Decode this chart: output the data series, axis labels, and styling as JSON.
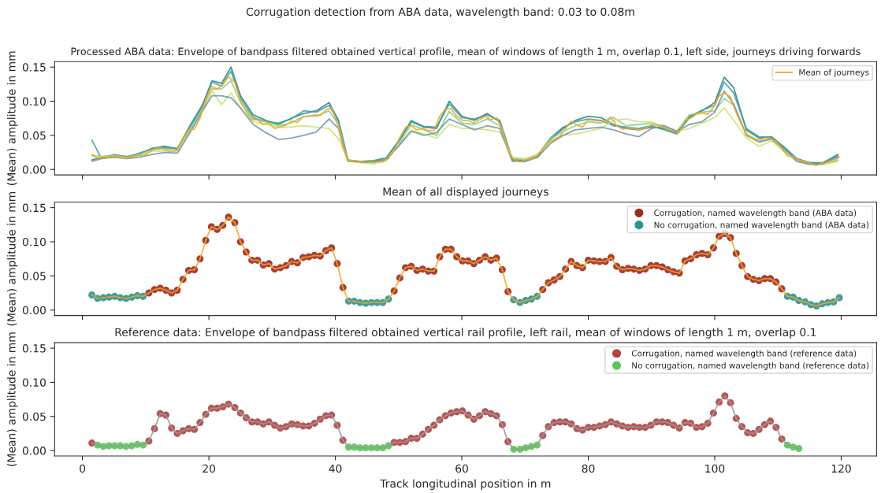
{
  "chart_data": [
    {
      "type": "line",
      "title": "Corrugation detection from ABA data, wavelength band: 0.03 to 0.08m",
      "subtitle": "Processed ABA data: Envelope of bandpass filtered obtained vertical profile, mean of windows of length 1 m, overlap 0.1, left side, journeys driving forwards",
      "ylabel": "(Mean) amplitude in mm",
      "xlim": [
        -4.4,
        125.6
      ],
      "xticks": [
        0,
        20,
        40,
        60,
        80,
        100,
        120
      ],
      "ylim": [
        -0.008,
        0.158
      ],
      "yticks": [
        {
          "value": 0,
          "label": "0.00"
        },
        {
          "value": 0.05,
          "label": "0.05"
        },
        {
          "value": 0.1,
          "label": "0.10"
        },
        {
          "value": 0.15,
          "label": "0.15"
        }
      ],
      "tick_labels": "y",
      "legend": "top right",
      "marker": "none",
      "line_style": "solid",
      "x": [
        1.5,
        3,
        5,
        7,
        9,
        11,
        13,
        15,
        17,
        19,
        20.5,
        22,
        23.5,
        25,
        27,
        29,
        31,
        33,
        35,
        37,
        39,
        40.5,
        42,
        44,
        46,
        48,
        50,
        52,
        54,
        56,
        58,
        60,
        62,
        64,
        66,
        68,
        70,
        72,
        74,
        76,
        78,
        80,
        82,
        84,
        86,
        88,
        90,
        92,
        94,
        96,
        98,
        100,
        101.5,
        103,
        105,
        107,
        109,
        111,
        113,
        115,
        117,
        119.5
      ],
      "series": [
        {
          "color": "#2c7f8c",
          "values": [
            0.014,
            0.018,
            0.021,
            0.019,
            0.022,
            0.031,
            0.034,
            0.03,
            0.064,
            0.095,
            0.13,
            0.126,
            0.15,
            0.108,
            0.08,
            0.072,
            0.066,
            0.075,
            0.082,
            0.086,
            0.098,
            0.072,
            0.014,
            0.011,
            0.012,
            0.016,
            0.042,
            0.07,
            0.062,
            0.06,
            0.1,
            0.078,
            0.072,
            0.082,
            0.07,
            0.014,
            0.012,
            0.019,
            0.044,
            0.06,
            0.072,
            0.078,
            0.076,
            0.066,
            0.06,
            0.058,
            0.062,
            0.06,
            0.054,
            0.078,
            0.086,
            0.098,
            0.135,
            0.12,
            0.058,
            0.046,
            0.048,
            0.032,
            0.016,
            0.01,
            0.009,
            0.022
          ]
        },
        {
          "color": "#3a9f9f",
          "values": [
            0.043,
            0.016,
            0.022,
            0.018,
            0.024,
            0.03,
            0.032,
            0.031,
            0.062,
            0.092,
            0.128,
            0.122,
            0.144,
            0.104,
            0.076,
            0.07,
            0.068,
            0.074,
            0.086,
            0.084,
            0.094,
            0.07,
            0.013,
            0.012,
            0.013,
            0.017,
            0.04,
            0.072,
            0.063,
            0.062,
            0.096,
            0.076,
            0.074,
            0.08,
            0.072,
            0.015,
            0.013,
            0.02,
            0.046,
            0.062,
            0.07,
            0.074,
            0.072,
            0.064,
            0.062,
            0.06,
            0.064,
            0.058,
            0.052,
            0.076,
            0.087,
            0.094,
            0.128,
            0.112,
            0.06,
            0.048,
            0.047,
            0.033,
            0.015,
            0.01,
            0.01,
            0.02
          ]
        },
        {
          "color": "#88cf8a",
          "values": [
            0.02,
            0.019,
            0.021,
            0.018,
            0.022,
            0.029,
            0.03,
            0.028,
            0.058,
            0.088,
            0.118,
            0.118,
            0.13,
            0.098,
            0.074,
            0.07,
            0.064,
            0.068,
            0.078,
            0.078,
            0.086,
            0.066,
            0.014,
            0.012,
            0.01,
            0.015,
            0.036,
            0.066,
            0.058,
            0.05,
            0.085,
            0.068,
            0.066,
            0.074,
            0.064,
            0.016,
            0.015,
            0.022,
            0.044,
            0.056,
            0.064,
            0.07,
            0.068,
            0.076,
            0.064,
            0.066,
            0.068,
            0.064,
            0.056,
            0.08,
            0.084,
            0.086,
            0.104,
            0.094,
            0.052,
            0.042,
            0.044,
            0.028,
            0.012,
            0.007,
            0.007,
            0.014
          ]
        },
        {
          "color": "#cce36a",
          "values": [
            0.022,
            0.018,
            0.019,
            0.017,
            0.02,
            0.027,
            0.027,
            0.027,
            0.055,
            0.085,
            0.115,
            0.095,
            0.112,
            0.09,
            0.07,
            0.066,
            0.062,
            0.062,
            0.064,
            0.062,
            0.06,
            0.045,
            0.013,
            0.01,
            0.008,
            0.014,
            0.034,
            0.058,
            0.052,
            0.046,
            0.066,
            0.06,
            0.06,
            0.058,
            0.055,
            0.018,
            0.016,
            0.022,
            0.04,
            0.05,
            0.052,
            0.056,
            0.06,
            0.072,
            0.074,
            0.07,
            0.07,
            0.062,
            0.056,
            0.06,
            0.068,
            0.076,
            0.09,
            0.072,
            0.046,
            0.034,
            0.042,
            0.026,
            0.012,
            0.008,
            0.007,
            0.012
          ]
        },
        {
          "color": "#7090b0",
          "values": [
            0.012,
            0.016,
            0.018,
            0.016,
            0.018,
            0.022,
            0.025,
            0.024,
            0.054,
            0.086,
            0.108,
            0.108,
            0.105,
            0.09,
            0.066,
            0.054,
            0.044,
            0.046,
            0.05,
            0.055,
            0.074,
            0.06,
            0.012,
            0.011,
            0.011,
            0.014,
            0.034,
            0.056,
            0.05,
            0.054,
            0.074,
            0.066,
            0.058,
            0.064,
            0.06,
            0.012,
            0.012,
            0.018,
            0.038,
            0.05,
            0.058,
            0.06,
            0.062,
            0.058,
            0.052,
            0.048,
            0.06,
            0.064,
            0.056,
            0.066,
            0.07,
            0.084,
            0.115,
            0.096,
            0.05,
            0.04,
            0.045,
            0.03,
            0.012,
            0.008,
            0.008,
            0.018
          ]
        },
        {
          "name": "Mean of journeys",
          "color": "#f5a623",
          "x": [
            1.5,
            2.4,
            3.3,
            4.2,
            5.1,
            6.0,
            6.9,
            7.8,
            8.7,
            9.6,
            10.5,
            11.4,
            12.3,
            13.2,
            14.1,
            15.0,
            15.9,
            16.8,
            17.7,
            18.6,
            19.5,
            20.4,
            21.3,
            22.2,
            23.1,
            24.1,
            25.0,
            25.9,
            26.8,
            27.7,
            28.6,
            29.5,
            30.4,
            31.3,
            32.2,
            33.1,
            34.0,
            34.9,
            35.8,
            36.7,
            37.6,
            38.5,
            39.4,
            40.3,
            41.2,
            42.1,
            43.0,
            43.9,
            44.8,
            45.7,
            46.6,
            47.5,
            48.4,
            49.3,
            50.2,
            51.1,
            52.0,
            52.9,
            53.8,
            54.7,
            55.6,
            56.5,
            57.4,
            58.3,
            59.2,
            60.1,
            61.0,
            61.9,
            62.8,
            63.7,
            64.6,
            65.5,
            66.4,
            67.3,
            68.2,
            69.2,
            70.1,
            71.0,
            71.9,
            72.8,
            73.7,
            74.6,
            75.5,
            76.4,
            77.3,
            78.2,
            79.1,
            80.0,
            80.9,
            81.8,
            82.7,
            83.6,
            84.5,
            85.4,
            86.3,
            87.2,
            88.1,
            89.0,
            89.9,
            90.8,
            91.7,
            92.6,
            93.5,
            94.4,
            95.3,
            96.2,
            97.1,
            98.0,
            98.9,
            99.8,
            100.7,
            101.6,
            102.5,
            103.4,
            104.3,
            105.2,
            106.1,
            107.0,
            107.9,
            108.8,
            109.7,
            110.6,
            111.5,
            112.4,
            113.3,
            114.3,
            115.2,
            116.1,
            117.0,
            117.9,
            118.8,
            119.7
          ],
          "values": [
            0.022,
            0.017,
            0.018,
            0.019,
            0.02,
            0.018,
            0.017,
            0.019,
            0.021,
            0.02,
            0.025,
            0.03,
            0.032,
            0.029,
            0.025,
            0.029,
            0.045,
            0.058,
            0.059,
            0.075,
            0.102,
            0.122,
            0.118,
            0.124,
            0.136,
            0.128,
            0.1,
            0.085,
            0.073,
            0.073,
            0.066,
            0.068,
            0.06,
            0.062,
            0.065,
            0.071,
            0.069,
            0.077,
            0.078,
            0.08,
            0.079,
            0.087,
            0.091,
            0.068,
            0.033,
            0.013,
            0.013,
            0.011,
            0.01,
            0.011,
            0.011,
            0.011,
            0.016,
            0.028,
            0.047,
            0.062,
            0.064,
            0.058,
            0.06,
            0.057,
            0.057,
            0.078,
            0.089,
            0.089,
            0.078,
            0.072,
            0.072,
            0.068,
            0.073,
            0.078,
            0.073,
            0.076,
            0.059,
            0.027,
            0.015,
            0.011,
            0.014,
            0.016,
            0.02,
            0.03,
            0.04,
            0.044,
            0.049,
            0.06,
            0.071,
            0.065,
            0.062,
            0.073,
            0.072,
            0.071,
            0.071,
            0.077,
            0.064,
            0.059,
            0.061,
            0.06,
            0.058,
            0.06,
            0.065,
            0.065,
            0.063,
            0.059,
            0.056,
            0.054,
            0.072,
            0.075,
            0.081,
            0.083,
            0.081,
            0.091,
            0.108,
            0.112,
            0.106,
            0.083,
            0.065,
            0.049,
            0.045,
            0.043,
            0.046,
            0.046,
            0.041,
            0.031,
            0.02,
            0.019,
            0.014,
            0.012,
            0.008,
            0.006,
            0.009,
            0.011,
            0.012,
            0.018
          ]
        }
      ]
    },
    {
      "type": "scatter",
      "title": "Mean of all displayed journeys",
      "ylabel": "(Mean) amplitude in mm",
      "xlim": [
        -4.4,
        125.6
      ],
      "xticks": [
        0,
        20,
        40,
        60,
        80,
        100,
        120
      ],
      "ylim": [
        -0.008,
        0.158
      ],
      "yticks": [
        {
          "value": 0,
          "label": "0.00"
        },
        {
          "value": 0.05,
          "label": "0.05"
        },
        {
          "value": 0.1,
          "label": "0.10"
        },
        {
          "value": 0.15,
          "label": "0.15"
        }
      ],
      "tick_labels": "y",
      "legend": "top right",
      "x": [
        1.5,
        2.4,
        3.3,
        4.2,
        5.1,
        6.0,
        6.9,
        7.8,
        8.7,
        9.6,
        10.5,
        11.4,
        12.3,
        13.2,
        14.1,
        15.0,
        15.9,
        16.8,
        17.7,
        18.6,
        19.5,
        20.4,
        21.3,
        22.2,
        23.1,
        24.1,
        25.0,
        25.9,
        26.8,
        27.7,
        28.6,
        29.5,
        30.4,
        31.3,
        32.2,
        33.1,
        34.0,
        34.9,
        35.8,
        36.7,
        37.6,
        38.5,
        39.4,
        40.3,
        41.2,
        42.1,
        43.0,
        43.9,
        44.8,
        45.7,
        46.6,
        47.5,
        48.4,
        49.3,
        50.2,
        51.1,
        52.0,
        52.9,
        53.8,
        54.7,
        55.6,
        56.5,
        57.4,
        58.3,
        59.2,
        60.1,
        61.0,
        61.9,
        62.8,
        63.7,
        64.6,
        65.5,
        66.4,
        67.3,
        68.2,
        69.2,
        70.1,
        71.0,
        71.9,
        72.8,
        73.7,
        74.6,
        75.5,
        76.4,
        77.3,
        78.2,
        79.1,
        80.0,
        80.9,
        81.8,
        82.7,
        83.6,
        84.5,
        85.4,
        86.3,
        87.2,
        88.1,
        89.0,
        89.9,
        90.8,
        91.7,
        92.6,
        93.5,
        94.4,
        95.3,
        96.2,
        97.1,
        98.0,
        98.9,
        99.8,
        100.7,
        101.6,
        102.5,
        103.4,
        104.3,
        105.2,
        106.1,
        107.0,
        107.9,
        108.8,
        109.7,
        110.6,
        111.5,
        112.4,
        113.3,
        114.3,
        115.2,
        116.1,
        117.0,
        117.9,
        118.8,
        119.7
      ],
      "series": [
        {
          "type": "line",
          "marker": "none",
          "color": "#f5a623",
          "values": [
            0.022,
            0.017,
            0.018,
            0.019,
            0.02,
            0.018,
            0.017,
            0.019,
            0.021,
            0.02,
            0.025,
            0.03,
            0.032,
            0.029,
            0.025,
            0.029,
            0.045,
            0.058,
            0.059,
            0.075,
            0.102,
            0.122,
            0.118,
            0.124,
            0.136,
            0.128,
            0.1,
            0.085,
            0.073,
            0.073,
            0.066,
            0.068,
            0.06,
            0.062,
            0.065,
            0.071,
            0.069,
            0.077,
            0.078,
            0.08,
            0.079,
            0.087,
            0.091,
            0.068,
            0.033,
            0.013,
            0.013,
            0.011,
            0.01,
            0.011,
            0.011,
            0.011,
            0.016,
            0.028,
            0.047,
            0.062,
            0.064,
            0.058,
            0.06,
            0.057,
            0.057,
            0.078,
            0.089,
            0.089,
            0.078,
            0.072,
            0.072,
            0.068,
            0.073,
            0.078,
            0.073,
            0.076,
            0.059,
            0.027,
            0.015,
            0.011,
            0.014,
            0.016,
            0.02,
            0.03,
            0.04,
            0.044,
            0.049,
            0.06,
            0.071,
            0.065,
            0.062,
            0.073,
            0.072,
            0.071,
            0.071,
            0.077,
            0.064,
            0.059,
            0.061,
            0.06,
            0.058,
            0.06,
            0.065,
            0.065,
            0.063,
            0.059,
            0.056,
            0.054,
            0.072,
            0.075,
            0.081,
            0.083,
            0.081,
            0.091,
            0.108,
            0.112,
            0.106,
            0.083,
            0.065,
            0.049,
            0.045,
            0.043,
            0.046,
            0.046,
            0.041,
            0.031,
            0.02,
            0.019,
            0.014,
            0.012,
            0.008,
            0.006,
            0.009,
            0.011,
            0.012,
            0.018
          ]
        },
        {
          "name": "Corrugation, named wavelength band (ABA data)",
          "marker": "circle",
          "color": "#9e2a20",
          "values": [
            null,
            null,
            null,
            null,
            null,
            null,
            null,
            null,
            null,
            null,
            0.025,
            0.03,
            0.032,
            0.029,
            0.025,
            0.029,
            0.045,
            0.058,
            0.059,
            0.075,
            0.102,
            0.122,
            0.118,
            0.124,
            0.136,
            0.128,
            0.1,
            0.085,
            0.073,
            0.073,
            0.066,
            0.068,
            0.06,
            0.062,
            0.065,
            0.071,
            0.069,
            0.077,
            0.078,
            0.08,
            0.079,
            0.087,
            0.091,
            0.068,
            0.033,
            null,
            null,
            null,
            null,
            null,
            null,
            null,
            null,
            0.028,
            0.047,
            0.062,
            0.064,
            0.058,
            0.06,
            0.057,
            0.057,
            0.078,
            0.089,
            0.089,
            0.078,
            0.072,
            0.072,
            0.068,
            0.073,
            0.078,
            0.073,
            0.076,
            0.059,
            0.027,
            null,
            null,
            null,
            null,
            null,
            0.03,
            0.04,
            0.044,
            0.049,
            0.06,
            0.071,
            0.065,
            0.062,
            0.073,
            0.072,
            0.071,
            0.071,
            0.077,
            0.064,
            0.059,
            0.061,
            0.06,
            0.058,
            0.06,
            0.065,
            0.065,
            0.063,
            0.059,
            0.056,
            0.054,
            0.072,
            0.075,
            0.081,
            0.083,
            0.081,
            0.091,
            0.108,
            0.112,
            0.106,
            0.083,
            0.065,
            0.049,
            0.045,
            0.043,
            0.046,
            0.046,
            0.041,
            0.031,
            null,
            null,
            null,
            null,
            null,
            null,
            null,
            null,
            null,
            null
          ]
        },
        {
          "name": "No corrugation, named wavelength band (ABA data)",
          "marker": "circle",
          "color": "#2a9494",
          "values": [
            0.022,
            0.017,
            0.018,
            0.019,
            0.02,
            0.018,
            0.017,
            0.019,
            0.021,
            0.02,
            null,
            null,
            null,
            null,
            null,
            null,
            null,
            null,
            null,
            null,
            null,
            null,
            null,
            null,
            null,
            null,
            null,
            null,
            null,
            null,
            null,
            null,
            null,
            null,
            null,
            null,
            null,
            null,
            null,
            null,
            null,
            null,
            null,
            null,
            null,
            0.013,
            0.013,
            0.011,
            0.01,
            0.011,
            0.011,
            0.011,
            0.016,
            null,
            null,
            null,
            null,
            null,
            null,
            null,
            null,
            null,
            null,
            null,
            null,
            null,
            null,
            null,
            null,
            null,
            null,
            null,
            null,
            null,
            0.015,
            0.011,
            0.014,
            0.016,
            0.02,
            null,
            null,
            null,
            null,
            null,
            null,
            null,
            null,
            null,
            null,
            null,
            null,
            null,
            null,
            null,
            null,
            null,
            null,
            null,
            null,
            null,
            null,
            null,
            null,
            null,
            null,
            null,
            null,
            null,
            null,
            null,
            null,
            null,
            null,
            null,
            null,
            null,
            null,
            null,
            null,
            null,
            null,
            null,
            0.02,
            0.019,
            0.014,
            0.012,
            0.008,
            0.006,
            0.009,
            0.011,
            0.012,
            0.018
          ]
        }
      ]
    },
    {
      "type": "scatter",
      "title": "Reference data: Envelope of bandpass filtered obtained vertical rail profile, left rail, mean of windows of length 1 m, overlap 0.1",
      "xlabel": "Track longitudinal position in m",
      "ylabel": "(Mean) amplitude in mm",
      "xlim": [
        -4.4,
        125.6
      ],
      "xticks": [
        0,
        20,
        40,
        60,
        80,
        100,
        120
      ],
      "ylim": [
        -0.008,
        0.158
      ],
      "yticks": [
        {
          "value": 0,
          "label": "0.00"
        },
        {
          "value": 0.05,
          "label": "0.05"
        },
        {
          "value": 0.1,
          "label": "0.10"
        },
        {
          "value": 0.15,
          "label": "0.15"
        }
      ],
      "legend": "top right",
      "x": [
        1.5,
        2.4,
        3.3,
        4.2,
        5.1,
        6.0,
        6.9,
        7.8,
        8.7,
        9.6,
        10.5,
        11.4,
        12.3,
        13.2,
        14.1,
        15.0,
        15.9,
        16.8,
        17.7,
        18.6,
        19.5,
        20.4,
        21.3,
        22.2,
        23.1,
        24.1,
        25.0,
        25.9,
        26.8,
        27.7,
        28.6,
        29.5,
        30.4,
        31.3,
        32.2,
        33.1,
        34.0,
        34.9,
        35.8,
        36.7,
        37.6,
        38.5,
        39.4,
        40.3,
        41.2,
        42.1,
        43.0,
        43.9,
        44.8,
        45.7,
        46.6,
        47.5,
        48.4,
        49.3,
        50.2,
        51.1,
        52.0,
        52.9,
        53.8,
        54.7,
        55.6,
        56.5,
        57.4,
        58.3,
        59.2,
        60.1,
        61.0,
        61.9,
        62.8,
        63.7,
        64.6,
        65.5,
        66.4,
        67.3,
        68.2,
        69.2,
        70.1,
        71.0,
        71.9,
        72.8,
        73.7,
        74.6,
        75.5,
        76.4,
        77.3,
        78.2,
        79.1,
        80.0,
        80.9,
        81.8,
        82.7,
        83.6,
        84.5,
        85.4,
        86.3,
        87.2,
        88.1,
        89.0,
        89.9,
        90.8,
        91.7,
        92.6,
        93.5,
        94.4,
        95.3,
        96.2,
        97.1,
        98.0,
        98.9,
        99.8,
        100.7,
        101.6,
        102.5,
        103.4,
        104.3,
        105.2,
        106.1,
        107.0,
        107.9,
        108.8,
        109.7,
        110.6,
        111.5,
        112.4,
        113.3
      ],
      "series": [
        {
          "type": "line",
          "marker": "none",
          "color": "#999999",
          "values": [
            0.011,
            0.008,
            0.006,
            0.007,
            0.007,
            0.007,
            0.006,
            0.007,
            0.009,
            0.008,
            0.014,
            0.032,
            0.054,
            0.052,
            0.033,
            0.025,
            0.029,
            0.032,
            0.031,
            0.041,
            0.053,
            0.062,
            0.062,
            0.064,
            0.068,
            0.063,
            0.055,
            0.048,
            0.042,
            0.042,
            0.039,
            0.042,
            0.037,
            0.033,
            0.035,
            0.039,
            0.038,
            0.036,
            0.036,
            0.04,
            0.046,
            0.051,
            0.052,
            0.037,
            0.015,
            0.005,
            0.005,
            0.004,
            0.004,
            0.004,
            0.004,
            0.004,
            0.007,
            0.012,
            0.012,
            0.013,
            0.018,
            0.018,
            0.024,
            0.031,
            0.037,
            0.045,
            0.051,
            0.055,
            0.057,
            0.058,
            0.052,
            0.046,
            0.051,
            0.057,
            0.054,
            0.051,
            0.038,
            0.013,
            0.002,
            0.002,
            0.004,
            0.006,
            0.008,
            0.022,
            0.035,
            0.041,
            0.042,
            0.042,
            0.039,
            0.032,
            0.03,
            0.034,
            0.034,
            0.036,
            0.038,
            0.042,
            0.039,
            0.036,
            0.034,
            0.035,
            0.034,
            0.034,
            0.037,
            0.042,
            0.042,
            0.041,
            0.037,
            0.033,
            0.041,
            0.04,
            0.034,
            0.035,
            0.04,
            0.055,
            0.071,
            0.08,
            0.07,
            0.047,
            0.035,
            0.026,
            0.025,
            0.031,
            0.038,
            0.043,
            0.034,
            0.017,
            0.008,
            0.005,
            0.003
          ]
        },
        {
          "name": "Corrugation, named wavelength band (reference data)",
          "marker": "circle",
          "color": "#b04444",
          "values": [
            0.011,
            null,
            null,
            null,
            null,
            null,
            null,
            null,
            null,
            null,
            0.014,
            0.032,
            0.054,
            0.052,
            0.033,
            0.025,
            0.029,
            0.032,
            0.031,
            0.041,
            0.053,
            0.062,
            0.062,
            0.064,
            0.068,
            0.063,
            0.055,
            0.048,
            0.042,
            0.042,
            0.039,
            0.042,
            0.037,
            0.033,
            0.035,
            0.039,
            0.038,
            0.036,
            0.036,
            0.04,
            0.046,
            0.051,
            0.052,
            0.037,
            0.015,
            null,
            null,
            null,
            null,
            null,
            null,
            null,
            null,
            0.012,
            0.012,
            0.013,
            0.018,
            0.018,
            0.024,
            0.031,
            0.037,
            0.045,
            0.051,
            0.055,
            0.057,
            0.058,
            0.052,
            0.046,
            0.051,
            0.057,
            0.054,
            0.051,
            0.038,
            0.013,
            null,
            null,
            null,
            null,
            null,
            0.022,
            0.035,
            0.041,
            0.042,
            0.042,
            0.039,
            0.032,
            0.03,
            0.034,
            0.034,
            0.036,
            0.038,
            0.042,
            0.039,
            0.036,
            0.034,
            0.035,
            0.034,
            0.034,
            0.037,
            0.042,
            0.042,
            0.041,
            0.037,
            0.033,
            0.041,
            0.04,
            0.034,
            0.035,
            0.04,
            0.055,
            0.071,
            0.08,
            0.07,
            0.047,
            0.035,
            0.026,
            0.025,
            0.031,
            0.038,
            0.043,
            0.034,
            0.017,
            null,
            null,
            null
          ]
        },
        {
          "name": "No corrugation, named wavelength band (reference data)",
          "marker": "circle",
          "color": "#55c855",
          "values": [
            null,
            0.008,
            0.006,
            0.007,
            0.007,
            0.007,
            0.006,
            0.007,
            0.009,
            0.008,
            null,
            null,
            null,
            null,
            null,
            null,
            null,
            null,
            null,
            null,
            null,
            null,
            null,
            null,
            null,
            null,
            null,
            null,
            null,
            null,
            null,
            null,
            null,
            null,
            null,
            null,
            null,
            null,
            null,
            null,
            null,
            null,
            null,
            null,
            null,
            0.005,
            0.005,
            0.004,
            0.004,
            0.004,
            0.004,
            0.004,
            0.007,
            null,
            null,
            null,
            null,
            null,
            null,
            null,
            null,
            null,
            null,
            null,
            null,
            null,
            null,
            null,
            null,
            null,
            null,
            null,
            null,
            null,
            0.002,
            0.002,
            0.004,
            0.006,
            0.008,
            null,
            null,
            null,
            null,
            null,
            null,
            null,
            null,
            null,
            null,
            null,
            null,
            null,
            null,
            null,
            null,
            null,
            null,
            null,
            null,
            null,
            null,
            null,
            null,
            null,
            null,
            null,
            null,
            null,
            null,
            null,
            null,
            null,
            null,
            null,
            null,
            null,
            null,
            null,
            null,
            null,
            null,
            null,
            0.008,
            0.005,
            0.003
          ]
        }
      ]
    }
  ]
}
